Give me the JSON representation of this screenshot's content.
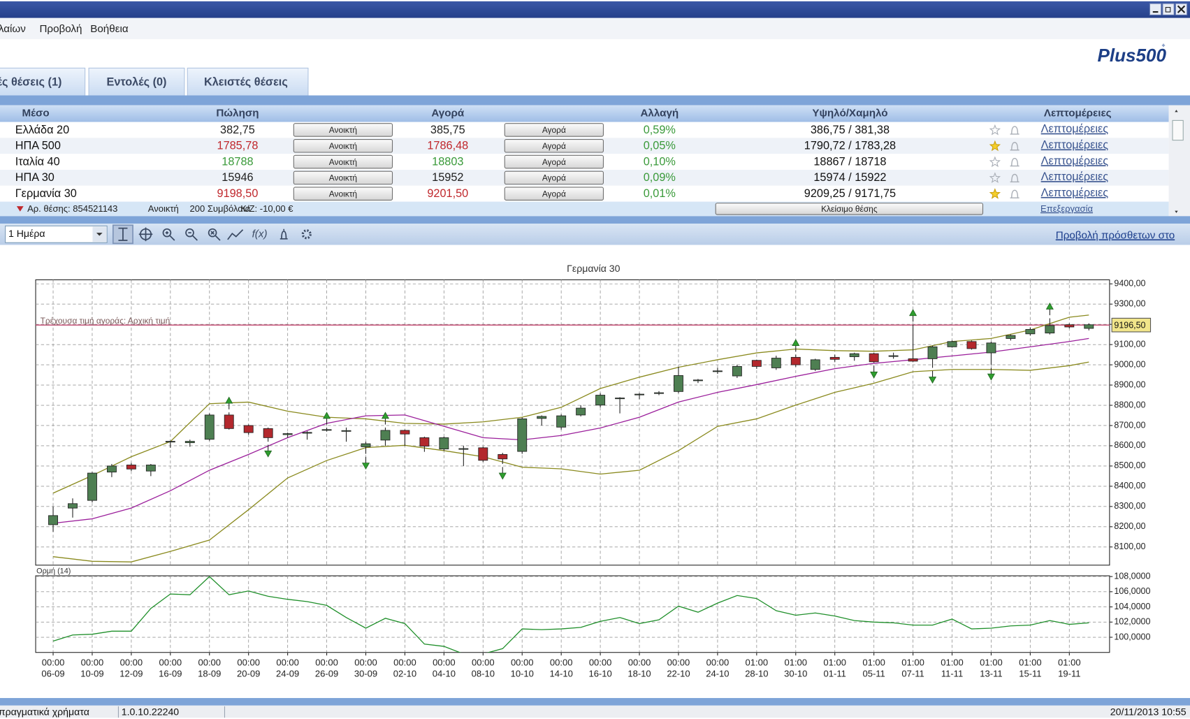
{
  "window": {
    "menu": [
      "λαίων",
      "Προβολή",
      "Βοήθεια"
    ],
    "logo": "Plus500"
  },
  "tabs": [
    "ές θέσεις (1)",
    "Εντολές (0)",
    "Κλειστές θέσεις"
  ],
  "table": {
    "headers": [
      "Μέσο",
      "Πώληση",
      "Αγορά",
      "Αλλαγή",
      "Υψηλό/Χαμηλό",
      "Λεπτομέρειες"
    ],
    "rows": [
      {
        "name": "Ελλάδα 20",
        "sell": "382,75",
        "sell_color": "#222222",
        "sell_button": "Ανοικτή",
        "buy": "385,75",
        "buy_color": "#222222",
        "buy_button": "Αγορά",
        "change": "0,59%",
        "high_low": "386,75 / 381,38",
        "favorite": false,
        "details": "Λεπτομέρειες"
      },
      {
        "name": "ΗΠΑ 500",
        "sell": "1785,78",
        "sell_color": "#c0282d",
        "sell_button": "Ανοικτή",
        "buy": "1786,48",
        "buy_color": "#c0282d",
        "buy_button": "Αγορά",
        "change": "0,05%",
        "high_low": "1790,72 / 1783,28",
        "favorite": true,
        "details": "Λεπτομέρειες"
      },
      {
        "name": "Ιταλία 40",
        "sell": "18788",
        "sell_color": "#3a9a3a",
        "sell_button": "Ανοικτή",
        "buy": "18803",
        "buy_color": "#3a9a3a",
        "buy_button": "Αγορά",
        "change": "0,10%",
        "high_low": "18867 / 18718",
        "favorite": false,
        "details": "Λεπτομέρειες"
      },
      {
        "name": "ΗΠΑ 30",
        "sell": "15946",
        "sell_color": "#222222",
        "sell_button": "Ανοικτή",
        "buy": "15952",
        "buy_color": "#222222",
        "buy_button": "Αγορά",
        "change": "0,09%",
        "high_low": "15974 / 15922",
        "favorite": false,
        "details": "Λεπτομέρειες"
      },
      {
        "name": "Γερμανία 30",
        "sell": "9198,50",
        "sell_color": "#c0282d",
        "sell_button": "Ανοικτή",
        "buy": "9201,50",
        "buy_color": "#c0282d",
        "buy_button": "Αγορά",
        "change": "0,01%",
        "high_low": "9209,25 / 9171,75",
        "favorite": true,
        "details": "Λεπτομέρειες"
      }
    ],
    "position": {
      "id": "Αρ. θέσης: 854521143",
      "status": "Ανοικτή",
      "contracts": "200 Συμβόλαια",
      "pnl": "Κ/Ζ: -10,00 €",
      "close_button": "Κλείσιμο θέσης",
      "edit": "Επεξεργασία"
    }
  },
  "toolbar": {
    "period": "1 Ημέρα",
    "function_icon": "f(x)",
    "link": "Προβολή πρόσθετων στο"
  },
  "chart_data": {
    "type": "candlestick",
    "title": "Γερμανία 30",
    "categories": [
      {
        "time": "00:00",
        "date": "06-09"
      },
      null,
      {
        "time": "00:00",
        "date": "10-09"
      },
      null,
      {
        "time": "00:00",
        "date": "12-09"
      },
      null,
      {
        "time": "00:00",
        "date": "16-09"
      },
      null,
      {
        "time": "00:00",
        "date": "18-09"
      },
      null,
      {
        "time": "00:00",
        "date": "20-09"
      },
      null,
      {
        "time": "00:00",
        "date": "24-09"
      },
      null,
      {
        "time": "00:00",
        "date": "26-09"
      },
      null,
      {
        "time": "00:00",
        "date": "30-09"
      },
      null,
      {
        "time": "00:00",
        "date": "02-10"
      },
      null,
      {
        "time": "00:00",
        "date": "04-10"
      },
      null,
      {
        "time": "00:00",
        "date": "08-10"
      },
      null,
      {
        "time": "00:00",
        "date": "10-10"
      },
      null,
      {
        "time": "00:00",
        "date": "14-10"
      },
      null,
      {
        "time": "00:00",
        "date": "16-10"
      },
      null,
      {
        "time": "00:00",
        "date": "18-10"
      },
      null,
      {
        "time": "00:00",
        "date": "22-10"
      },
      null,
      {
        "time": "00:00",
        "date": "24-10"
      },
      null,
      {
        "time": "01:00",
        "date": "28-10"
      },
      null,
      {
        "time": "01:00",
        "date": "30-10"
      },
      null,
      {
        "time": "01:00",
        "date": "01-11"
      },
      null,
      {
        "time": "01:00",
        "date": "05-11"
      },
      null,
      {
        "time": "01:00",
        "date": "07-11"
      },
      null,
      {
        "time": "01:00",
        "date": "11-11"
      },
      null,
      {
        "time": "01:00",
        "date": "13-11"
      },
      null,
      {
        "time": "01:00",
        "date": "15-11"
      },
      null,
      {
        "time": "01:00",
        "date": "19-11"
      },
      null
    ],
    "open": [
      8210,
      8292,
      8330,
      8470,
      8505,
      8475,
      8620,
      8615,
      8632,
      8752,
      8700,
      8685,
      8655,
      8662,
      8677,
      8672,
      8595,
      8628,
      8676,
      8640,
      8584,
      8584,
      8590,
      8557,
      8572,
      8735,
      8692,
      8752,
      8801,
      8833,
      8852,
      8860,
      8868,
      8922,
      8968,
      8945,
      9022,
      8985,
      9037,
      8977,
      9037,
      9040,
      9055,
      9043,
      9030,
      9030,
      9089,
      9115,
      9059,
      9130,
      9153,
      9157,
      9198,
      9180
    ],
    "high": [
      8300,
      8340,
      8470,
      8510,
      8515,
      8510,
      8625,
      8630,
      8760,
      8765,
      8705,
      8690,
      8665,
      8672,
      8690,
      8690,
      8620,
      8690,
      8680,
      8645,
      8645,
      8600,
      8595,
      8565,
      8740,
      8750,
      8755,
      8800,
      8860,
      8840,
      8860,
      8870,
      8990,
      8930,
      8985,
      9000,
      9025,
      9045,
      9050,
      9030,
      9050,
      9060,
      9060,
      9060,
      9198,
      9095,
      9120,
      9120,
      9115,
      9150,
      9185,
      9230,
      9205,
      9205
    ],
    "low": [
      8175,
      8245,
      8320,
      8445,
      8475,
      8450,
      8590,
      8595,
      8625,
      8680,
      8655,
      8620,
      8640,
      8630,
      8670,
      8620,
      8560,
      8600,
      8600,
      8570,
      8575,
      8500,
      8520,
      8510,
      8560,
      8700,
      8680,
      8745,
      8790,
      8760,
      8830,
      8850,
      8860,
      8910,
      8955,
      8935,
      8980,
      8975,
      8990,
      8970,
      9015,
      9020,
      9010,
      9030,
      9015,
      8985,
      9085,
      9075,
      9000,
      9120,
      9145,
      9150,
      9180,
      9170
    ],
    "close": [
      8255,
      8314,
      8465,
      8500,
      8485,
      8505,
      8622,
      8622,
      8752,
      8685,
      8665,
      8640,
      8660,
      8666,
      8680,
      8675,
      8610,
      8676,
      8658,
      8598,
      8640,
      8586,
      8528,
      8535,
      8733,
      8745,
      8748,
      8786,
      8850,
      8836,
      8855,
      8862,
      8947,
      8925,
      8970,
      8992,
      8992,
      9033,
      9000,
      9025,
      9027,
      9055,
      9015,
      9045,
      9018,
      9089,
      9115,
      9080,
      9108,
      9145,
      9175,
      9194,
      9187,
      9198
    ],
    "up_color": "#4e7f52",
    "down_color": "#b3282d",
    "ylim": [
      8010,
      9420
    ],
    "yticks": [
      {
        "value": 8100,
        "label": "8100,00"
      },
      {
        "value": 8200,
        "label": "8200,00"
      },
      {
        "value": 8300,
        "label": "8300,00"
      },
      {
        "value": 8400,
        "label": "8400,00"
      },
      {
        "value": 8500,
        "label": "8500,00"
      },
      {
        "value": 8600,
        "label": "8600,00"
      },
      {
        "value": 8700,
        "label": "8700,00"
      },
      {
        "value": 8800,
        "label": "8800,00"
      },
      {
        "value": 8900,
        "label": "8900,00"
      },
      {
        "value": 9000,
        "label": "9000,00"
      },
      {
        "value": 9100,
        "label": "9100,00"
      },
      {
        "value": 9200,
        "label": "9200,00"
      },
      {
        "value": 9300,
        "label": "9300,00"
      },
      {
        "value": 9400,
        "label": "9400,00"
      }
    ],
    "grid": true,
    "bands": {
      "x": [
        0,
        2,
        4,
        6,
        8,
        10,
        12,
        14,
        16,
        18,
        20,
        22,
        24,
        26,
        28,
        30,
        32,
        34,
        36,
        38,
        40,
        42,
        44,
        46,
        48,
        50,
        52,
        53
      ],
      "upper": [
        8366,
        8453,
        8546,
        8621,
        8808,
        8816,
        8771,
        8741,
        8733,
        8711,
        8707,
        8718,
        8741,
        8790,
        8883,
        8939,
        8988,
        9025,
        9059,
        9078,
        9070,
        9067,
        9074,
        9115,
        9130,
        9172,
        9235,
        9246
      ],
      "middle": [
        8217,
        8239,
        8292,
        8378,
        8479,
        8557,
        8640,
        8711,
        8748,
        8752,
        8696,
        8640,
        8629,
        8651,
        8688,
        8741,
        8816,
        8864,
        8902,
        8943,
        8981,
        9007,
        9025,
        9044,
        9063,
        9089,
        9115,
        9130
      ],
      "lower": [
        8052,
        8029,
        8026,
        8078,
        8134,
        8284,
        8441,
        8527,
        8591,
        8602,
        8576,
        8546,
        8494,
        8486,
        8460,
        8479,
        8576,
        8696,
        8733,
        8801,
        8864,
        8909,
        8966,
        8977,
        8977,
        8973,
        8996,
        9014
      ],
      "band_color": "#8a8a1e",
      "middle_color": "#9b1f9b"
    },
    "up_signals": [
      9,
      14,
      17,
      38,
      44,
      51
    ],
    "down_signals": [
      11,
      16,
      23,
      42,
      45,
      48
    ],
    "signal_color": "#2f9e2f",
    "price_line": {
      "value": 9196.5,
      "label": "9196,50",
      "text": "Τρέχουσα τιμή αγοράς: Αρχική τιμή",
      "color": "#c0406a"
    },
    "indicator": {
      "title": "Ορμή (14)",
      "color": "#1f8f2a",
      "values": [
        99.5,
        100.3,
        100.4,
        100.8,
        100.8,
        103.8,
        105.7,
        105.6,
        108.0,
        105.6,
        106.1,
        105.4,
        105.0,
        104.7,
        104.2,
        102.6,
        101.2,
        102.5,
        101.8,
        99.1,
        98.8,
        97.8,
        97.8,
        98.5,
        101.1,
        101.0,
        101.1,
        101.3,
        102.1,
        102.6,
        101.8,
        102.3,
        104.1,
        103.3,
        104.5,
        105.5,
        105.1,
        103.5,
        102.9,
        103.2,
        102.8,
        102.2,
        102.0,
        101.9,
        101.6,
        101.6,
        102.4,
        101.1,
        101.2,
        101.5,
        101.6,
        102.2,
        101.7,
        101.9
      ],
      "ylim": [
        98,
        108.1
      ],
      "yticks": [
        {
          "value": 100,
          "label": "100,0000"
        },
        {
          "value": 102,
          "label": "102,0000"
        },
        {
          "value": 104,
          "label": "104,0000"
        },
        {
          "value": 106,
          "label": "106,0000"
        },
        {
          "value": 108,
          "label": "108,0000"
        }
      ]
    }
  },
  "status_bar": {
    "account": "πραγματικά χρήματα",
    "version": "1.0.10.22240",
    "datetime": "20/11/2013 10:55"
  }
}
